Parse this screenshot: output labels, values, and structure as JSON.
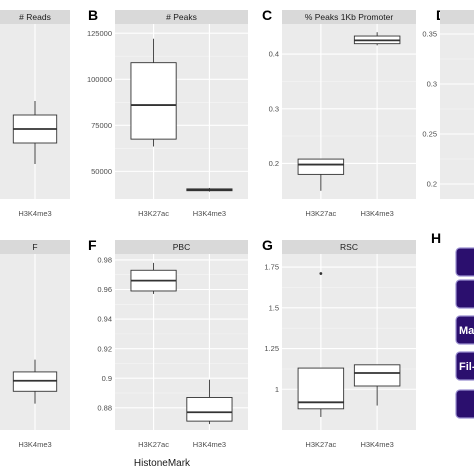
{
  "x_axis_title": "HistoneMark",
  "colors": {
    "panel_bg": "#ebebeb",
    "grid_major": "#ffffff",
    "grid_minor": "#f5f5f5",
    "strip_bg": "#d9d9d9",
    "box_fill": "#ffffff",
    "box_line": "#333333",
    "button_fill": "#2b0f6e",
    "button_border": "#9a8fd0"
  },
  "chart_data": [
    {
      "panel_letter": "",
      "type": "boxplot",
      "title": "# Reads",
      "strip_label": "# Reads",
      "categories": [
        "H3K4me3"
      ],
      "yticks": [],
      "ylim": [
        0,
        1
      ],
      "boxes": [
        {
          "category": "H3K4me3",
          "min": 0.2,
          "q1": 0.32,
          "median": 0.4,
          "q3": 0.48,
          "max": 0.56,
          "outliers": []
        }
      ]
    },
    {
      "panel_letter": "B",
      "type": "boxplot",
      "title": "# Peaks",
      "strip_label": "# Peaks",
      "categories": [
        "H3K27ac",
        "H3K4me3"
      ],
      "yticks": [
        50000,
        75000,
        100000,
        125000
      ],
      "ylim": [
        35000,
        130000
      ],
      "boxes": [
        {
          "category": "H3K27ac",
          "min": 63500,
          "q1": 67500,
          "median": 86000,
          "q3": 109000,
          "max": 122000,
          "outliers": []
        },
        {
          "category": "H3K4me3",
          "min": 39000,
          "q1": 39500,
          "median": 40000,
          "q3": 40500,
          "max": 41000,
          "outliers": []
        }
      ]
    },
    {
      "panel_letter": "C",
      "type": "boxplot",
      "title": "% Peaks 1Kb Promoter",
      "strip_label": "% Peaks 1Kb Promoter",
      "categories": [
        "H3K27ac",
        "H3K4me3"
      ],
      "yticks": [
        0.2,
        0.3,
        0.4
      ],
      "ylim": [
        0.135,
        0.455
      ],
      "boxes": [
        {
          "category": "H3K27ac",
          "min": 0.15,
          "q1": 0.18,
          "median": 0.198,
          "q3": 0.208,
          "max": 0.208,
          "outliers": []
        },
        {
          "category": "H3K4me3",
          "min": 0.416,
          "q1": 0.419,
          "median": 0.425,
          "q3": 0.433,
          "max": 0.44,
          "outliers": []
        }
      ]
    },
    {
      "panel_letter": "D",
      "type": "boxplot",
      "title": "",
      "strip_label": "",
      "categories": [],
      "yticks": [
        0.2,
        0.25,
        0.3,
        0.35
      ],
      "ylim": [
        0.185,
        0.36
      ],
      "boxes": []
    },
    {
      "panel_letter": "",
      "type": "boxplot",
      "title": "F",
      "strip_label": "F",
      "categories": [
        "H3K4me3"
      ],
      "yticks": [],
      "ylim": [
        0,
        1
      ],
      "boxes": [
        {
          "category": "H3K4me3",
          "min": 0.15,
          "q1": 0.22,
          "median": 0.28,
          "q3": 0.33,
          "max": 0.4,
          "outliers": []
        }
      ]
    },
    {
      "panel_letter": "F",
      "type": "boxplot",
      "title": "PBC",
      "strip_label": "PBC",
      "categories": [
        "H3K27ac",
        "H3K4me3"
      ],
      "yticks": [
        0.88,
        0.9,
        0.92,
        0.94,
        0.96,
        0.98
      ],
      "ylim": [
        0.865,
        0.984
      ],
      "boxes": [
        {
          "category": "H3K27ac",
          "min": 0.957,
          "q1": 0.959,
          "median": 0.966,
          "q3": 0.973,
          "max": 0.978,
          "outliers": []
        },
        {
          "category": "H3K4me3",
          "min": 0.869,
          "q1": 0.871,
          "median": 0.877,
          "q3": 0.887,
          "max": 0.899,
          "outliers": []
        }
      ]
    },
    {
      "panel_letter": "G",
      "type": "boxplot",
      "title": "RSC",
      "strip_label": "RSC",
      "categories": [
        "H3K27ac",
        "H3K4me3"
      ],
      "yticks": [
        1.0,
        1.25,
        1.5,
        1.75
      ],
      "ylim": [
        0.75,
        1.83
      ],
      "boxes": [
        {
          "category": "H3K27ac",
          "min": 0.83,
          "q1": 0.88,
          "median": 0.92,
          "q3": 1.13,
          "max": 1.13,
          "outliers": [
            1.71
          ]
        },
        {
          "category": "H3K4me3",
          "min": 0.9,
          "q1": 1.02,
          "median": 1.1,
          "q3": 1.15,
          "max": 1.15,
          "outliers": []
        }
      ]
    }
  ],
  "panel_h": {
    "letter": "H",
    "buttons": [
      "",
      "",
      "Ma",
      "Fil-",
      ""
    ]
  }
}
